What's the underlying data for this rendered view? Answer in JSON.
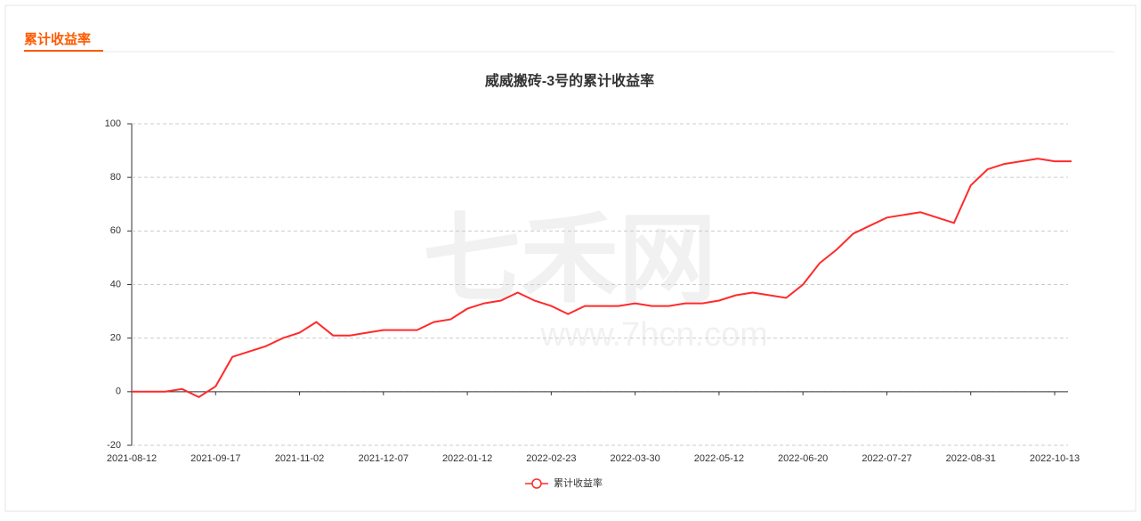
{
  "header": {
    "title": "累计收益率"
  },
  "watermark": {
    "text": "七禾网",
    "url": "www.7hcn.com"
  },
  "chart_data": {
    "type": "line",
    "title": "威威搬砖-3号的累计收益率",
    "categories": [
      "2021-08-12",
      null,
      null,
      null,
      null,
      "2021-09-17",
      null,
      null,
      null,
      null,
      "2021-11-02",
      null,
      null,
      null,
      null,
      "2021-12-07",
      null,
      null,
      null,
      null,
      "2022-01-12",
      null,
      null,
      null,
      null,
      "2022-02-23",
      null,
      null,
      null,
      null,
      "2022-03-30",
      null,
      null,
      null,
      null,
      "2022-05-12",
      null,
      null,
      null,
      null,
      "2022-06-20",
      null,
      null,
      null,
      null,
      "2022-07-27",
      null,
      null,
      null,
      null,
      "2022-08-31",
      null,
      null,
      null,
      null,
      "2022-10-13",
      null
    ],
    "series": [
      {
        "name": "累计收益率",
        "color": "#ff2a2a",
        "values": [
          0,
          0,
          0,
          1,
          -2,
          2,
          13,
          15,
          17,
          20,
          22,
          26,
          21,
          21,
          22,
          23,
          23,
          23,
          26,
          27,
          31,
          33,
          34,
          37,
          34,
          32,
          29,
          32,
          32,
          32,
          33,
          32,
          32,
          33,
          33,
          34,
          36,
          37,
          36,
          35,
          40,
          48,
          53,
          59,
          62,
          65,
          66,
          67,
          65,
          63,
          77,
          83,
          85,
          86,
          87,
          86,
          86
        ]
      }
    ],
    "ylim": [
      -20,
      100
    ],
    "yticks": [
      -20,
      0,
      20,
      40,
      60,
      80,
      100
    ],
    "grid": true,
    "legend": "bottom"
  }
}
